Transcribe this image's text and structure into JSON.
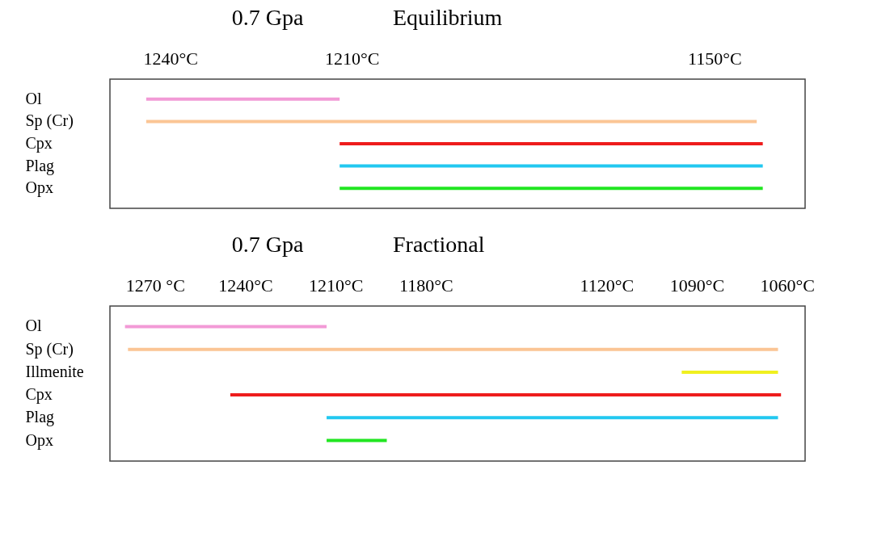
{
  "chart_data": [
    {
      "type": "bar",
      "orientation": "horizontal",
      "title": "0.7 Gpa",
      "subtitle": "Equilibrium",
      "categories": [
        "Ol",
        "Sp (Cr)",
        "Cpx",
        "Plag",
        "Opx"
      ],
      "base": [
        1244,
        1244,
        1212,
        1212,
        1212
      ],
      "values": [
        -32,
        -101,
        -70,
        -70,
        -70
      ],
      "colors": [
        "#f29ad6",
        "#fbc595",
        "#ee1c1c",
        "#22c8f0",
        "#22e622"
      ],
      "xlim": [
        1250,
        1135
      ],
      "xticks": [
        {
          "value": 1240,
          "label": "1240°C"
        },
        {
          "value": 1210,
          "label": "1210°C"
        },
        {
          "value": 1150,
          "label": "1150°C"
        }
      ]
    },
    {
      "type": "bar",
      "orientation": "horizontal",
      "title": "0.7 Gpa",
      "subtitle": "Fractional",
      "categories": [
        "Ol",
        "Sp (Cr)",
        "Illmenite",
        "Cpx",
        "Plag",
        "Opx"
      ],
      "base": [
        1280,
        1279,
        1095,
        1245,
        1213,
        1213
      ],
      "values": [
        -67,
        -216,
        -32,
        -183,
        -150,
        -20
      ],
      "colors": [
        "#f29ad6",
        "#fbc595",
        "#f0f020",
        "#ee1c1c",
        "#22c8f0",
        "#22e622"
      ],
      "xlim": [
        1285,
        1054
      ],
      "xticks": [
        {
          "value": 1270,
          "label": "1270 °C"
        },
        {
          "value": 1240,
          "label": "1240°C"
        },
        {
          "value": 1210,
          "label": "1210°C"
        },
        {
          "value": 1180,
          "label": "1180°C"
        },
        {
          "value": 1120,
          "label": "1120°C"
        },
        {
          "value": 1090,
          "label": "1090°C"
        },
        {
          "value": 1060,
          "label": "1060°C"
        }
      ]
    }
  ]
}
